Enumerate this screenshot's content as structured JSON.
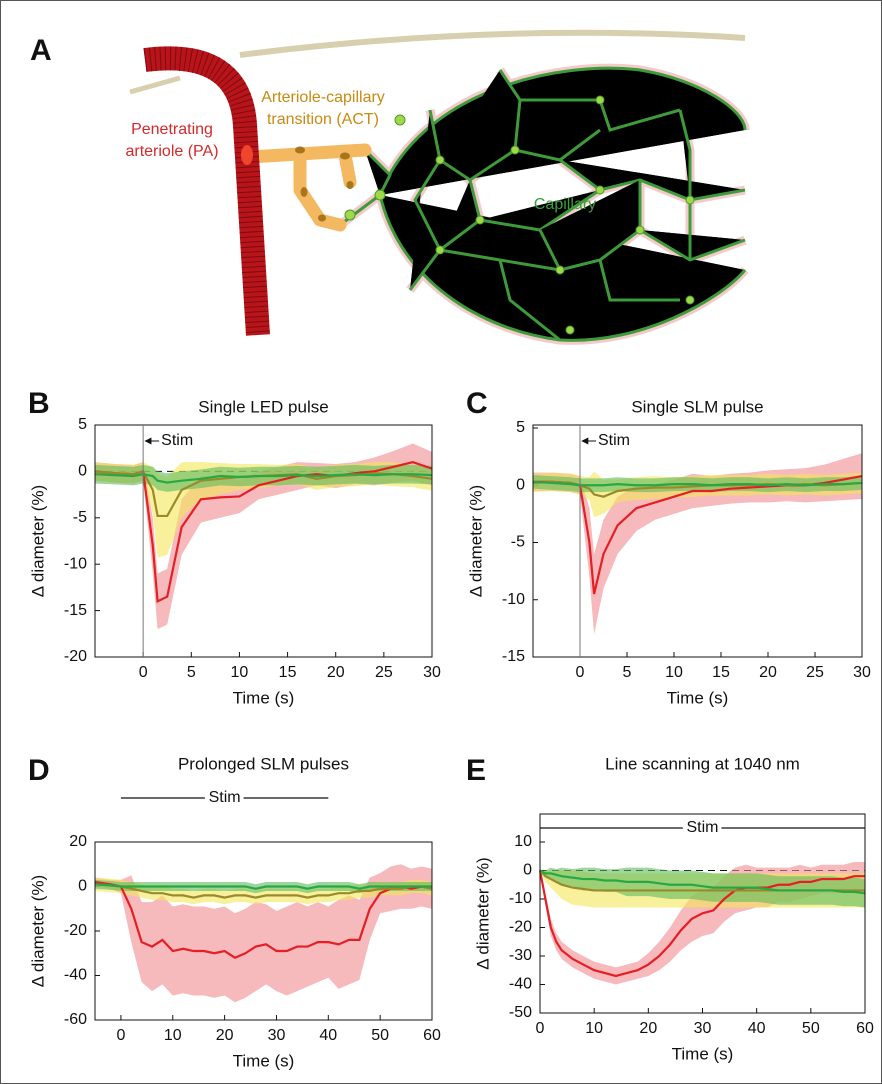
{
  "panel_a": {
    "label": "A",
    "pa_label": [
      "Penetrating",
      "arteriole (PA)"
    ],
    "act_label": [
      "Arteriole-capillary",
      "transition (ACT)"
    ],
    "cap_label": "Capillary"
  },
  "chart_data": [
    {
      "type": "line",
      "label": "B",
      "title": "Single LED pulse",
      "xlabel": "Time (s)",
      "ylabel": "Δ diameter (%)",
      "stim_label": "Stim",
      "stim": [
        0
      ],
      "zero_line": true,
      "xlim": [
        -5,
        30
      ],
      "ylim": [
        -20,
        5
      ],
      "xticks": [
        0,
        5,
        10,
        15,
        20,
        25,
        30
      ],
      "yticks": [
        -20,
        -15,
        -10,
        -5,
        0,
        5
      ],
      "x": [
        -5,
        -3,
        -1,
        0,
        1,
        1.5,
        2.5,
        4,
        6,
        8,
        10,
        12,
        14,
        16,
        18,
        20,
        22,
        24,
        26,
        28,
        30
      ],
      "series": [
        {
          "color": "#e41f26",
          "band_color": "#f08a90",
          "values": [
            0,
            -0.2,
            -0.3,
            0,
            -8,
            -14,
            -13.5,
            -6,
            -3,
            -2.8,
            -2.7,
            -1.5,
            -1,
            -0.5,
            -0.3,
            -0.5,
            -0.2,
            0,
            0.5,
            1,
            0.3
          ],
          "errors": [
            1,
            1,
            1,
            1,
            3,
            3,
            3,
            3,
            2.5,
            2.2,
            1.8,
            1.5,
            1.5,
            1.5,
            1.2,
            1.3,
            1.2,
            1.5,
            1.7,
            2,
            1.8
          ]
        },
        {
          "color": "#9a8a2a",
          "band_color": "#f5e65a",
          "values": [
            0,
            -0.2,
            -0.3,
            0,
            -2,
            -4.8,
            -4.8,
            -2,
            -1,
            -0.8,
            -0.6,
            -0.5,
            -0.4,
            -0.3,
            -0.8,
            -0.5,
            -0.4,
            -0.2,
            -0.3,
            -0.5,
            -0.8
          ],
          "errors": [
            1,
            1,
            1,
            1,
            2.5,
            4.5,
            4.2,
            3,
            2,
            1.7,
            1.4,
            1.3,
            1.1,
            1.1,
            1.2,
            1.2,
            1.2,
            1.2,
            1.3,
            1.2,
            1.3
          ]
        },
        {
          "color": "#27a844",
          "band_color": "#5dbb5d",
          "values": [
            -0.3,
            -0.4,
            -0.5,
            -0.3,
            -0.5,
            -1,
            -1.2,
            -1,
            -0.8,
            -0.5,
            -0.6,
            -0.5,
            -0.5,
            -0.4,
            -0.5,
            -0.4,
            -0.3,
            -0.4,
            -0.3,
            -0.3,
            -0.4
          ],
          "errors": [
            1,
            1,
            1,
            1,
            1,
            1,
            1,
            1,
            1,
            1,
            1,
            1,
            1,
            1,
            1,
            1,
            1,
            1,
            1,
            1,
            1
          ]
        }
      ]
    },
    {
      "type": "line",
      "label": "C",
      "title": "Single SLM pulse",
      "xlabel": "Time (s)",
      "ylabel": "Δ diameter (%)",
      "stim_label": "Stim",
      "stim": [
        0
      ],
      "zero_line": false,
      "xlim": [
        -5,
        30
      ],
      "ylim": [
        -15,
        5
      ],
      "xticks": [
        0,
        5,
        10,
        15,
        20,
        25,
        30
      ],
      "yticks": [
        -15,
        -10,
        -5,
        0,
        5
      ],
      "x": [
        -5,
        -3,
        -1,
        0,
        1,
        1.5,
        2.5,
        4,
        6,
        8,
        10,
        12,
        14,
        16,
        18,
        20,
        22,
        24,
        26,
        28,
        30
      ],
      "series": [
        {
          "color": "#e41f26",
          "band_color": "#f08a90",
          "values": [
            0.3,
            0.3,
            0.2,
            0,
            -5,
            -9.5,
            -6,
            -3.5,
            -2,
            -1.5,
            -1,
            -0.5,
            -0.5,
            -0.3,
            -0.2,
            -0.1,
            0,
            0,
            0.2,
            0.5,
            0.8
          ],
          "errors": [
            0.8,
            0.8,
            0.8,
            0.8,
            3,
            3.5,
            3,
            2.5,
            2,
            1.5,
            1.5,
            1.5,
            1.3,
            1.3,
            1.3,
            1.4,
            1.4,
            1.5,
            1.6,
            1.8,
            2
          ]
        },
        {
          "color": "#9a8a2a",
          "band_color": "#f5e65a",
          "values": [
            0.2,
            0.3,
            0.2,
            0,
            -0.3,
            -0.8,
            -1,
            -0.5,
            -0.3,
            -0.2,
            -0.2,
            -0.1,
            0,
            0,
            0,
            0.1,
            0,
            0.1,
            0,
            0.1,
            0.2
          ],
          "errors": [
            0.8,
            0.8,
            0.8,
            0.8,
            1,
            2,
            1.5,
            1,
            1,
            1,
            0.9,
            0.9,
            0.9,
            0.9,
            0.9,
            0.9,
            0.9,
            0.9,
            0.9,
            0.9,
            0.9
          ]
        },
        {
          "color": "#27a844",
          "band_color": "#5dbb5d",
          "values": [
            0.3,
            0.2,
            0.1,
            0,
            0,
            0,
            0,
            0.1,
            0,
            0,
            0.1,
            0.1,
            0,
            0.1,
            0.1,
            0,
            0.1,
            0,
            0.1,
            0.1,
            0.2
          ],
          "errors": [
            0.6,
            0.6,
            0.6,
            0.6,
            0.6,
            0.6,
            0.6,
            0.6,
            0.6,
            0.6,
            0.6,
            0.6,
            0.6,
            0.6,
            0.6,
            0.6,
            0.6,
            0.6,
            0.6,
            0.6,
            0.6
          ]
        }
      ]
    },
    {
      "type": "line",
      "label": "D",
      "title": "Prolonged SLM pulses",
      "xlabel": "Time (s)",
      "ylabel": "Δ diameter (%)",
      "stim_label": "Stim",
      "stim": [
        0,
        40
      ],
      "zero_line": false,
      "xlim": [
        -5,
        60
      ],
      "ylim": [
        -60,
        20
      ],
      "xticks": [
        0,
        10,
        20,
        30,
        40,
        50,
        60
      ],
      "yticks": [
        -60,
        -40,
        -20,
        0,
        20
      ],
      "x": [
        -5,
        -2,
        0,
        2,
        4,
        6,
        8,
        10,
        12,
        14,
        16,
        18,
        20,
        22,
        24,
        26,
        28,
        30,
        32,
        34,
        36,
        38,
        40,
        42,
        44,
        46,
        48,
        50,
        52,
        54,
        56,
        58,
        60
      ],
      "series": [
        {
          "color": "#e41f26",
          "band_color": "#f08a90",
          "values": [
            2,
            1,
            0,
            -10,
            -25,
            -27,
            -24,
            -29,
            -28,
            -29,
            -29,
            -30,
            -29,
            -32,
            -30,
            -27,
            -26,
            -29,
            -29,
            -27,
            -27,
            -25,
            -25,
            -26,
            -24,
            -24,
            -10,
            -3,
            -1,
            0,
            -1,
            0,
            -1
          ],
          "errors": [
            2,
            2,
            3,
            15,
            18,
            20,
            20,
            20,
            20,
            20,
            20,
            20,
            20,
            20,
            20,
            20,
            18,
            18,
            20,
            20,
            18,
            18,
            16,
            20,
            20,
            18,
            14,
            9,
            10,
            10,
            9,
            9,
            9
          ]
        },
        {
          "color": "#9a8a2a",
          "band_color": "#f5e65a",
          "values": [
            1,
            0.5,
            0,
            -1,
            -2,
            -3,
            -3,
            -4,
            -4,
            -5,
            -4,
            -4,
            -5,
            -4,
            -4,
            -5,
            -4,
            -4,
            -4,
            -4,
            -5,
            -4,
            -4,
            -3,
            -3,
            -2,
            -2,
            -1,
            -1,
            -1,
            0,
            0,
            -1
          ],
          "errors": [
            3,
            3,
            3,
            3,
            3,
            3,
            3,
            3,
            3,
            3,
            3,
            3,
            3,
            3,
            3,
            3,
            3,
            3,
            3,
            3,
            3,
            3,
            3,
            3,
            3,
            3,
            3,
            3,
            3,
            3,
            3,
            3,
            3
          ]
        },
        {
          "color": "#27a844",
          "band_color": "#5dbb5d",
          "values": [
            1,
            0.5,
            0,
            0,
            0,
            0,
            0,
            0,
            0,
            0,
            0,
            0,
            0,
            0,
            0,
            -1,
            0,
            0,
            0,
            0,
            -1,
            0,
            0,
            0,
            0,
            -1,
            0,
            0,
            0,
            0,
            0,
            0,
            0
          ],
          "errors": [
            2,
            2,
            2,
            2,
            2,
            2,
            2,
            2,
            2,
            2,
            2,
            2,
            2,
            2,
            2,
            2,
            2,
            2,
            2,
            2,
            2,
            2,
            2,
            2,
            2,
            2,
            2,
            2,
            2,
            2,
            2,
            2,
            2
          ]
        }
      ]
    },
    {
      "type": "line",
      "label": "E",
      "title": "Line scanning at 1040 nm",
      "xlabel": "Time (s)",
      "ylabel": "Δ diameter (%)",
      "stim_label": "Stim",
      "stim": [
        0,
        60
      ],
      "zero_line": true,
      "xlim": [
        0,
        60
      ],
      "ylim": [
        -50,
        10
      ],
      "xticks": [
        0,
        10,
        20,
        30,
        40,
        50,
        60
      ],
      "yticks": [
        -50,
        -40,
        -30,
        -20,
        -10,
        0,
        10
      ],
      "x": [
        0,
        1,
        2,
        3,
        4,
        6,
        8,
        10,
        12,
        14,
        16,
        18,
        20,
        22,
        24,
        26,
        28,
        30,
        32,
        34,
        36,
        38,
        40,
        42,
        44,
        46,
        48,
        50,
        52,
        54,
        56,
        58,
        60
      ],
      "series": [
        {
          "color": "#e41f26",
          "band_color": "#f08a90",
          "values": [
            0,
            -10,
            -20,
            -25,
            -28,
            -31,
            -33,
            -35,
            -36,
            -37,
            -36,
            -35,
            -33,
            -30,
            -26,
            -21,
            -17,
            -15,
            -14,
            -10,
            -7,
            -6,
            -6,
            -6,
            -5,
            -5,
            -4,
            -4,
            -3,
            -3,
            -3,
            -2,
            -2
          ],
          "errors": [
            0,
            2,
            3,
            3,
            3,
            3,
            3,
            3,
            3,
            3,
            3,
            3,
            4,
            5,
            6,
            7,
            8,
            8,
            8,
            8,
            8,
            8,
            7,
            7,
            6,
            6,
            6,
            5,
            5,
            5,
            5,
            5,
            5
          ]
        },
        {
          "color": "#9a8a2a",
          "band_color": "#f5e65a",
          "values": [
            0,
            -2,
            -3,
            -4,
            -5,
            -6,
            -6.5,
            -7,
            -7,
            -7,
            -7,
            -7,
            -7,
            -7,
            -7,
            -7,
            -7,
            -7,
            -7,
            -7,
            -7,
            -7,
            -7,
            -7,
            -7,
            -7,
            -7,
            -7,
            -7,
            -7,
            -7,
            -7,
            -7
          ],
          "errors": [
            0,
            2,
            3,
            4,
            5,
            6,
            6,
            6,
            6,
            6,
            6,
            6,
            6,
            6,
            6,
            6,
            6,
            6,
            6,
            6,
            6,
            6,
            6,
            6,
            6,
            6,
            6,
            6,
            6,
            6,
            6,
            6,
            6
          ]
        },
        {
          "color": "#27a844",
          "band_color": "#5dbb5d",
          "values": [
            0,
            -1,
            -1,
            -1.5,
            -2,
            -2.5,
            -3,
            -3,
            -3.5,
            -3.5,
            -4,
            -4,
            -4,
            -4.5,
            -5,
            -5,
            -5,
            -5.5,
            -6,
            -6,
            -6,
            -6,
            -6,
            -6.5,
            -7,
            -7,
            -7,
            -7,
            -7,
            -7,
            -7.5,
            -7.5,
            -8
          ],
          "errors": [
            0,
            1,
            2,
            2,
            3,
            3,
            4,
            4,
            4,
            4,
            5,
            5,
            5,
            5,
            5,
            5,
            5,
            5,
            5,
            5,
            5,
            5,
            5,
            5,
            5,
            5,
            5,
            5,
            5,
            5,
            5,
            5,
            5
          ]
        }
      ]
    }
  ]
}
